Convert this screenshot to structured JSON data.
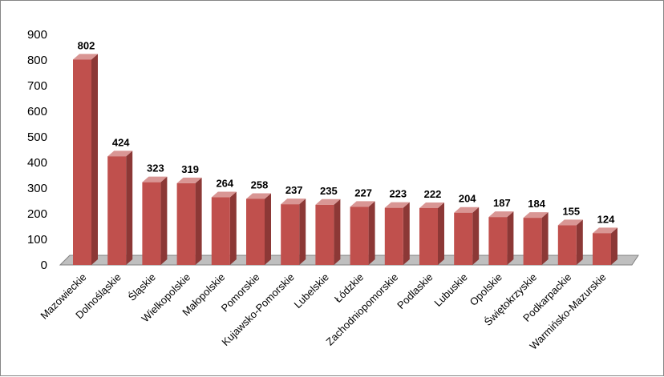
{
  "chart_data": {
    "type": "bar",
    "title": "",
    "xlabel": "",
    "ylabel": "",
    "ylim": [
      0,
      900
    ],
    "yticks": [
      0,
      100,
      200,
      300,
      400,
      500,
      600,
      700,
      800,
      900
    ],
    "grid": false,
    "legend": "none",
    "style": "3d-column",
    "categories": [
      "Mazowieckie",
      "Dolnośląskie",
      "Śląskie",
      "Wielkopolskie",
      "Małopolskie",
      "Pomorskie",
      "Kujawsko-Pomorskie",
      "Lubelskie",
      "Łódzkie",
      "Zachodniopomorskie",
      "Podlaskie",
      "Lubuskie",
      "Opolskie",
      "Świętokrzyskie",
      "Podkarpackie",
      "Warmińsko-Mazurskie"
    ],
    "values": [
      802,
      424,
      323,
      319,
      264,
      258,
      237,
      235,
      227,
      223,
      222,
      204,
      187,
      184,
      155,
      124
    ],
    "colors": {
      "bar_front": "#C0504D",
      "bar_side": "#8C3836",
      "bar_top": "#D99694",
      "floor": "#BFBFBF",
      "floor_line": "#7F7F7F"
    }
  }
}
